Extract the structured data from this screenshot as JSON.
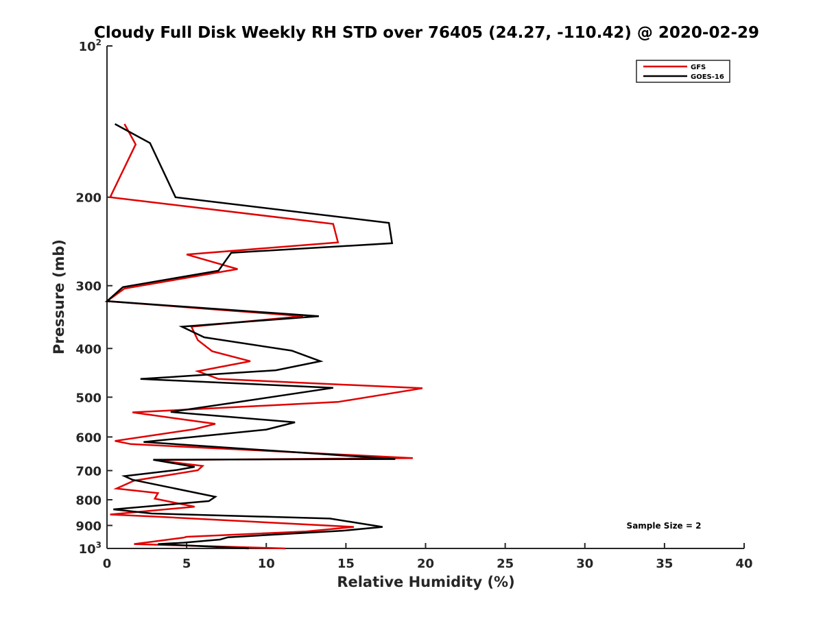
{
  "chart_data": {
    "type": "line",
    "title": "Cloudy Full Disk Weekly RH STD over 76405 (24.27, -110.42) @ 2020-02-29",
    "xlabel": "Relative Humidity (%)",
    "ylabel": "Pressure (mb)",
    "xlim": [
      0,
      40
    ],
    "ylim": [
      100,
      1000
    ],
    "y_scale": "log",
    "y_reversed": true,
    "x_ticks": [
      "0",
      "5",
      "10",
      "15",
      "20",
      "25",
      "30",
      "35",
      "40"
    ],
    "y_ticks": [
      {
        "value": 100,
        "label": "10",
        "exp": "2"
      },
      {
        "value": 200,
        "label": "200"
      },
      {
        "value": 300,
        "label": "300"
      },
      {
        "value": 400,
        "label": "400"
      },
      {
        "value": 500,
        "label": "500"
      },
      {
        "value": 600,
        "label": "600"
      },
      {
        "value": 700,
        "label": "700"
      },
      {
        "value": 800,
        "label": "800"
      },
      {
        "value": 900,
        "label": "900"
      },
      {
        "value": 1000,
        "label": "10",
        "exp": "3"
      }
    ],
    "grid": false,
    "legend_position": "top-right",
    "annotation": "Sample Size = 2",
    "series": [
      {
        "name": "GFS",
        "color": "#e00000",
        "x": [
          1.1,
          1.8,
          0.2,
          14.2,
          14.5,
          5.0,
          8.2,
          1.1,
          0.0,
          12.3,
          5.3,
          5.7,
          6.6,
          9.0,
          5.7,
          7.0,
          19.8,
          14.5,
          1.6,
          6.8,
          5.5,
          0.5,
          1.5,
          19.2,
          3.0,
          6.0,
          5.7,
          1.7,
          0.6,
          3.2,
          3.0,
          5.5,
          0.2,
          3.0,
          15.5,
          12.5,
          5.0,
          4.8,
          1.7,
          11.2
        ],
        "y": [
          143,
          157,
          200,
          226,
          246,
          260,
          278,
          304,
          322,
          345,
          362,
          385,
          405,
          424,
          444,
          460,
          480,
          511,
          536,
          565,
          579,
          611,
          620,
          661,
          667,
          685,
          699,
          733,
          760,
          776,
          796,
          826,
          856,
          864,
          906,
          925,
          948,
          952,
          980,
          1000
        ]
      },
      {
        "name": "GOES-16",
        "color": "#000000",
        "x": [
          0.5,
          2.7,
          4.3,
          17.7,
          17.9,
          7.8,
          7.0,
          1.0,
          0.0,
          13.3,
          4.7,
          6.1,
          11.6,
          13.4,
          10.6,
          2.1,
          14.2,
          8.1,
          4.0,
          11.8,
          10.0,
          4.3,
          2.3,
          12.0,
          18.1,
          2.9,
          5.5,
          4.4,
          1.1,
          1.6,
          6.8,
          6.4,
          0.4,
          2.8,
          14.0,
          17.3,
          14.8,
          7.6,
          7.1,
          4.8,
          3.2,
          8.9
        ],
        "y": [
          143,
          156,
          200,
          225,
          247,
          258,
          280,
          302,
          322,
          345,
          362,
          380,
          404,
          424,
          442,
          460,
          479,
          512,
          535,
          561,
          580,
          605,
          614,
          644,
          664,
          666,
          688,
          698,
          718,
          730,
          789,
          805,
          836,
          852,
          872,
          906,
          922,
          950,
          960,
          974,
          980,
          1000
        ]
      }
    ]
  }
}
